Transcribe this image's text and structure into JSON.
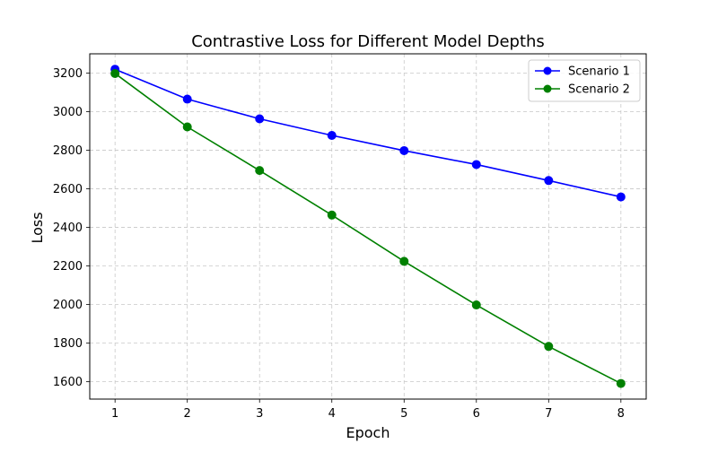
{
  "chart_data": {
    "type": "line",
    "title": "Contrastive Loss for Different Model Depths",
    "xlabel": "Epoch",
    "ylabel": "Loss",
    "x": [
      1,
      2,
      3,
      4,
      5,
      6,
      7,
      8
    ],
    "xlim": [
      0.65,
      8.35
    ],
    "ylim": [
      1510,
      3300
    ],
    "xticks": [
      1,
      2,
      3,
      4,
      5,
      6,
      7,
      8
    ],
    "yticks": [
      1600,
      1800,
      2000,
      2200,
      2400,
      2600,
      2800,
      3000,
      3200
    ],
    "grid": true,
    "legend_position": "top-right",
    "series": [
      {
        "name": "Scenario 1",
        "color": "#0000ff",
        "marker": "circle",
        "values": [
          3220,
          3065,
          2963,
          2877,
          2798,
          2726,
          2643,
          2558
        ]
      },
      {
        "name": "Scenario 2",
        "color": "#008000",
        "marker": "circle",
        "values": [
          3198,
          2921,
          2695,
          2464,
          2224,
          1998,
          1783,
          1591
        ]
      }
    ]
  }
}
